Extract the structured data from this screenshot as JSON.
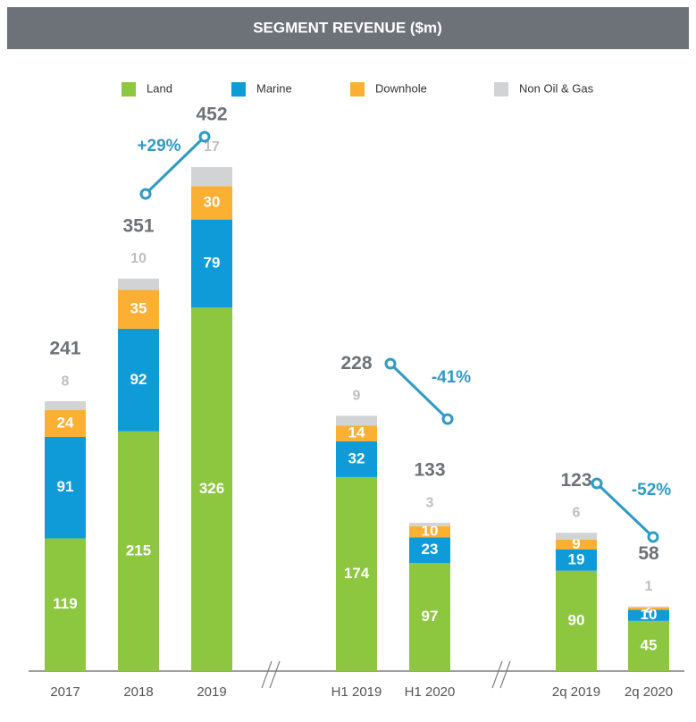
{
  "chart_data": {
    "type": "stacked-bar",
    "title": "SEGMENT REVENUE ($m)",
    "categories": [
      "2017",
      "2018",
      "2019",
      "H1 2019",
      "H1 2020",
      "2q 2019",
      "2q 2020"
    ],
    "series": [
      {
        "name": "Land",
        "color": "#8dc63f",
        "values": [
          119,
          215,
          326,
          174,
          97,
          90,
          45
        ]
      },
      {
        "name": "Marine",
        "color": "#0e9bd8",
        "values": [
          91,
          92,
          79,
          32,
          23,
          19,
          10
        ]
      },
      {
        "name": "Downhole",
        "color": "#fbb034",
        "values": [
          24,
          35,
          30,
          14,
          10,
          9,
          2
        ]
      },
      {
        "name": "Non Oil & Gas",
        "color": "#d1d3d4",
        "values": [
          8,
          10,
          17,
          9,
          3,
          6,
          1
        ]
      }
    ],
    "totals": [
      241,
      351,
      452,
      228,
      133,
      123,
      58
    ],
    "annotations": [
      "+29%",
      "-41%",
      "-52%"
    ]
  }
}
